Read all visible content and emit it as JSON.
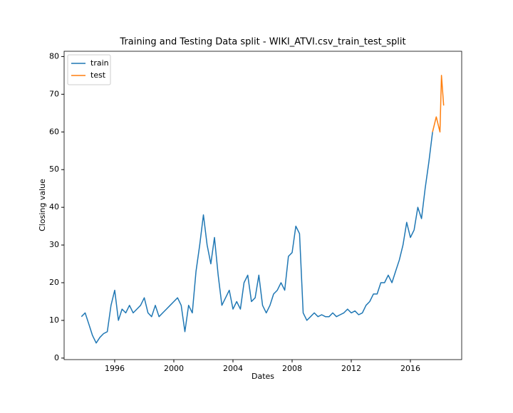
{
  "chart_data": {
    "type": "line",
    "title": "Training and Testing Data split - WIKI_ATVI.csv_train_test_split",
    "x_label": "Dates",
    "y_label": "Closing value",
    "x": [
      1993.75,
      1994,
      1994.25,
      1994.5,
      1994.75,
      1995,
      1995.25,
      1995.5,
      1995.75,
      1996,
      1996.25,
      1996.5,
      1996.75,
      1997,
      1997.25,
      1997.5,
      1997.75,
      1998,
      1998.25,
      1998.5,
      1998.75,
      1999,
      1999.25,
      1999.5,
      1999.75,
      2000,
      2000.25,
      2000.5,
      2000.75,
      2001,
      2001.25,
      2001.5,
      2001.75,
      2002,
      2002.25,
      2002.5,
      2002.75,
      2003,
      2003.25,
      2003.5,
      2003.75,
      2004,
      2004.25,
      2004.5,
      2004.75,
      2005,
      2005.25,
      2005.5,
      2005.75,
      2006,
      2006.25,
      2006.5,
      2006.75,
      2007,
      2007.25,
      2007.5,
      2007.75,
      2008,
      2008.25,
      2008.5,
      2008.75,
      2009,
      2009.25,
      2009.5,
      2009.75,
      2010,
      2010.25,
      2010.5,
      2010.75,
      2011,
      2011.25,
      2011.5,
      2011.75,
      2012,
      2012.25,
      2012.5,
      2012.75,
      2013,
      2013.25,
      2013.5,
      2013.75,
      2014,
      2014.25,
      2014.5,
      2014.75,
      2015,
      2015.25,
      2015.5,
      2015.75,
      2016,
      2016.25,
      2016.5,
      2016.75,
      2017,
      2017.25,
      2017.5,
      2017.75,
      2018,
      2018.1,
      2018.25
    ],
    "series": [
      {
        "name": "train",
        "color": "#1f77b4",
        "values": [
          11,
          12,
          9,
          6,
          4,
          5.5,
          6.5,
          7,
          14,
          18,
          10,
          13,
          12,
          14,
          12,
          13,
          14,
          16,
          12,
          11,
          14,
          11,
          12,
          13,
          14,
          15,
          16,
          14,
          7,
          14,
          12,
          23,
          30,
          38,
          30,
          25,
          32,
          22,
          14,
          16,
          18,
          13,
          15,
          13,
          20,
          22,
          15,
          16,
          22,
          14,
          12,
          14,
          17,
          18,
          20,
          18,
          27,
          28,
          35,
          33,
          12,
          10,
          11,
          12,
          11,
          11.5,
          11,
          11,
          12,
          11,
          11.5,
          12,
          13,
          12,
          12.5,
          11.5,
          12,
          14,
          15,
          17,
          17,
          20,
          20,
          22,
          20,
          23,
          26,
          30,
          36,
          32,
          34,
          40,
          37,
          45,
          52,
          60,
          null,
          null,
          null,
          null
        ]
      },
      {
        "name": "test",
        "color": "#ff7f0e",
        "values": [
          null,
          null,
          null,
          null,
          null,
          null,
          null,
          null,
          null,
          null,
          null,
          null,
          null,
          null,
          null,
          null,
          null,
          null,
          null,
          null,
          null,
          null,
          null,
          null,
          null,
          null,
          null,
          null,
          null,
          null,
          null,
          null,
          null,
          null,
          null,
          null,
          null,
          null,
          null,
          null,
          null,
          null,
          null,
          null,
          null,
          null,
          null,
          null,
          null,
          null,
          null,
          null,
          null,
          null,
          null,
          null,
          null,
          null,
          null,
          null,
          null,
          null,
          null,
          null,
          null,
          null,
          null,
          null,
          null,
          null,
          null,
          null,
          null,
          null,
          null,
          null,
          null,
          null,
          null,
          null,
          null,
          null,
          null,
          null,
          null,
          null,
          null,
          null,
          null,
          null,
          null,
          null,
          null,
          null,
          null,
          60,
          64,
          60,
          75,
          67
        ]
      }
    ],
    "xlim": [
      1992.58,
      2019.47
    ],
    "ylim": [
      -0.4,
      81.4
    ],
    "xticks": [
      1996,
      2000,
      2004,
      2008,
      2012,
      2016
    ],
    "yticks": [
      0,
      10,
      20,
      30,
      40,
      50,
      60,
      70,
      80
    ],
    "legend": "upper left"
  }
}
